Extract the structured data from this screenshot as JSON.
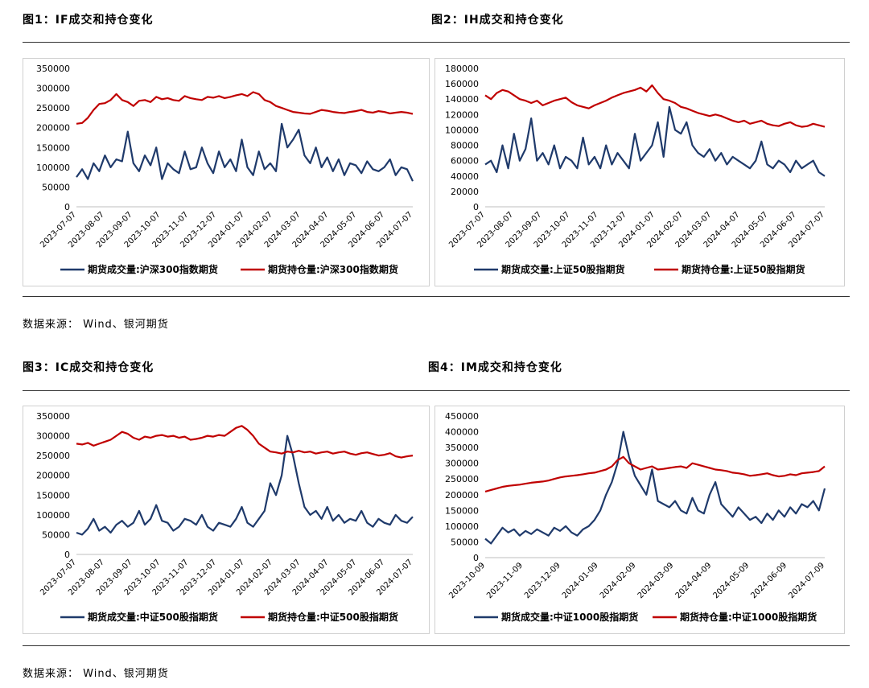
{
  "colors": {
    "volume": "#1f3a6b",
    "open_interest": "#c00000"
  },
  "top": {
    "left_title": "图1：IF成交和持仓变化",
    "right_title": "图2：IH成交和持仓变化",
    "source": "数据来源： Wind、银河期货"
  },
  "bottom": {
    "left_title": "图3：IC成交和持仓变化",
    "right_title": "图4：IM成交和持仓变化",
    "source": "数据来源： Wind、银河期货"
  },
  "chart_data": [
    {
      "id": "if",
      "type": "line",
      "x_labels": [
        "2023-07-07",
        "2023-08-07",
        "2023-09-07",
        "2023-10-07",
        "2023-11-07",
        "2023-12-07",
        "2024-01-07",
        "2024-02-07",
        "2024-03-07",
        "2024-04-07",
        "2024-05-07",
        "2024-06-07",
        "2024-07-07"
      ],
      "y_ticks": [
        "0",
        "50000",
        "100000",
        "150000",
        "200000",
        "250000",
        "300000",
        "350000"
      ],
      "ylim": [
        0,
        350000
      ],
      "series": [
        {
          "name": "期货成交量:沪深300指数期货",
          "color_key": "volume",
          "values": [
            75000,
            95000,
            70000,
            110000,
            90000,
            130000,
            100000,
            120000,
            115000,
            190000,
            110000,
            90000,
            130000,
            105000,
            150000,
            70000,
            110000,
            95000,
            85000,
            140000,
            95000,
            100000,
            150000,
            110000,
            85000,
            140000,
            100000,
            120000,
            90000,
            170000,
            100000,
            80000,
            140000,
            95000,
            110000,
            90000,
            210000,
            150000,
            170000,
            195000,
            130000,
            110000,
            150000,
            100000,
            125000,
            90000,
            120000,
            80000,
            110000,
            105000,
            85000,
            115000,
            95000,
            90000,
            100000,
            120000,
            80000,
            100000,
            95000,
            65000
          ]
        },
        {
          "name": "期货持仓量:沪深300指数期货",
          "color_key": "open_interest",
          "values": [
            210000,
            212000,
            225000,
            245000,
            260000,
            262000,
            270000,
            285000,
            270000,
            265000,
            255000,
            268000,
            270000,
            265000,
            278000,
            272000,
            275000,
            270000,
            268000,
            280000,
            275000,
            272000,
            270000,
            278000,
            276000,
            280000,
            275000,
            278000,
            282000,
            285000,
            280000,
            290000,
            285000,
            270000,
            265000,
            255000,
            250000,
            245000,
            240000,
            238000,
            236000,
            235000,
            240000,
            245000,
            243000,
            240000,
            238000,
            237000,
            240000,
            242000,
            245000,
            240000,
            238000,
            242000,
            240000,
            236000,
            238000,
            240000,
            238000,
            235000
          ]
        }
      ]
    },
    {
      "id": "ih",
      "type": "line",
      "x_labels": [
        "2023-07-07",
        "2023-08-07",
        "2023-09-07",
        "2023-10-07",
        "2023-11-07",
        "2023-12-07",
        "2024-01-07",
        "2024-02-07",
        "2024-03-07",
        "2024-04-07",
        "2024-05-07",
        "2024-06-07",
        "2024-07-07"
      ],
      "y_ticks": [
        "0",
        "20000",
        "40000",
        "60000",
        "80000",
        "100000",
        "120000",
        "140000",
        "160000",
        "180000"
      ],
      "ylim": [
        0,
        180000
      ],
      "series": [
        {
          "name": "期货成交量:上证50股指期货",
          "color_key": "volume",
          "values": [
            55000,
            60000,
            45000,
            80000,
            50000,
            95000,
            60000,
            75000,
            115000,
            60000,
            70000,
            55000,
            80000,
            50000,
            65000,
            60000,
            50000,
            90000,
            55000,
            65000,
            50000,
            80000,
            55000,
            70000,
            60000,
            50000,
            95000,
            60000,
            70000,
            80000,
            110000,
            65000,
            130000,
            100000,
            95000,
            110000,
            80000,
            70000,
            65000,
            75000,
            60000,
            70000,
            55000,
            65000,
            60000,
            55000,
            50000,
            60000,
            85000,
            55000,
            50000,
            60000,
            55000,
            45000,
            60000,
            50000,
            55000,
            60000,
            45000,
            40000
          ]
        },
        {
          "name": "期货持仓量:上证50股指期货",
          "color_key": "open_interest",
          "values": [
            145000,
            140000,
            148000,
            152000,
            150000,
            145000,
            140000,
            138000,
            135000,
            138000,
            132000,
            135000,
            138000,
            140000,
            142000,
            136000,
            132000,
            130000,
            128000,
            132000,
            135000,
            138000,
            142000,
            145000,
            148000,
            150000,
            152000,
            155000,
            150000,
            158000,
            148000,
            140000,
            138000,
            135000,
            130000,
            128000,
            125000,
            122000,
            120000,
            118000,
            120000,
            118000,
            115000,
            112000,
            110000,
            112000,
            108000,
            110000,
            112000,
            108000,
            106000,
            105000,
            108000,
            110000,
            106000,
            104000,
            105000,
            108000,
            106000,
            104000
          ]
        }
      ]
    },
    {
      "id": "ic",
      "type": "line",
      "x_labels": [
        "2023-07-07",
        "2023-08-07",
        "2023-09-07",
        "2023-10-07",
        "2023-11-07",
        "2023-12-07",
        "2024-01-07",
        "2024-02-07",
        "2024-03-07",
        "2024-04-07",
        "2024-05-07",
        "2024-06-07",
        "2024-07-07"
      ],
      "y_ticks": [
        "0",
        "50000",
        "100000",
        "150000",
        "200000",
        "250000",
        "300000",
        "350000"
      ],
      "ylim": [
        0,
        350000
      ],
      "series": [
        {
          "name": "期货成交量:中证500股指期货",
          "color_key": "volume",
          "values": [
            55000,
            50000,
            65000,
            90000,
            60000,
            70000,
            55000,
            75000,
            85000,
            70000,
            80000,
            110000,
            75000,
            90000,
            125000,
            85000,
            80000,
            60000,
            70000,
            90000,
            85000,
            75000,
            100000,
            70000,
            60000,
            80000,
            75000,
            70000,
            90000,
            120000,
            80000,
            70000,
            90000,
            110000,
            180000,
            150000,
            200000,
            300000,
            250000,
            180000,
            120000,
            100000,
            110000,
            90000,
            120000,
            85000,
            100000,
            80000,
            90000,
            85000,
            110000,
            80000,
            70000,
            90000,
            80000,
            75000,
            100000,
            85000,
            80000,
            95000
          ]
        },
        {
          "name": "期货持仓量:中证500股指期货",
          "color_key": "open_interest",
          "values": [
            280000,
            278000,
            282000,
            275000,
            280000,
            285000,
            290000,
            300000,
            310000,
            305000,
            295000,
            290000,
            298000,
            295000,
            300000,
            302000,
            298000,
            300000,
            295000,
            298000,
            290000,
            292000,
            295000,
            300000,
            298000,
            302000,
            300000,
            310000,
            320000,
            325000,
            315000,
            300000,
            280000,
            270000,
            260000,
            258000,
            255000,
            260000,
            258000,
            262000,
            258000,
            260000,
            255000,
            258000,
            260000,
            255000,
            258000,
            260000,
            255000,
            252000,
            256000,
            258000,
            254000,
            250000,
            252000,
            256000,
            248000,
            245000,
            248000,
            250000
          ]
        }
      ]
    },
    {
      "id": "im",
      "type": "line",
      "x_labels": [
        "2023-10-09",
        "2023-11-09",
        "2023-12-09",
        "2024-01-09",
        "2024-02-09",
        "2024-03-09",
        "2024-04-09",
        "2024-05-09",
        "2024-06-09",
        "2024-07-09"
      ],
      "y_ticks": [
        "0",
        "50000",
        "100000",
        "150000",
        "200000",
        "250000",
        "300000",
        "350000",
        "400000",
        "450000"
      ],
      "ylim": [
        0,
        450000
      ],
      "series": [
        {
          "name": "期货成交量:中证1000股指期货",
          "color_key": "volume",
          "values": [
            60000,
            45000,
            70000,
            95000,
            80000,
            90000,
            70000,
            85000,
            75000,
            90000,
            80000,
            70000,
            95000,
            85000,
            100000,
            80000,
            70000,
            90000,
            100000,
            120000,
            150000,
            200000,
            240000,
            300000,
            400000,
            320000,
            260000,
            230000,
            200000,
            280000,
            180000,
            170000,
            160000,
            180000,
            150000,
            140000,
            190000,
            150000,
            140000,
            200000,
            240000,
            170000,
            150000,
            130000,
            160000,
            140000,
            120000,
            130000,
            110000,
            140000,
            120000,
            150000,
            130000,
            160000,
            140000,
            170000,
            160000,
            180000,
            150000,
            220000
          ]
        },
        {
          "name": "期货持仓量:中证1000股指期货",
          "color_key": "open_interest",
          "values": [
            210000,
            215000,
            220000,
            225000,
            228000,
            230000,
            232000,
            235000,
            238000,
            240000,
            242000,
            245000,
            250000,
            255000,
            258000,
            260000,
            262000,
            265000,
            268000,
            270000,
            275000,
            280000,
            290000,
            310000,
            320000,
            300000,
            290000,
            280000,
            285000,
            290000,
            280000,
            282000,
            285000,
            288000,
            290000,
            285000,
            300000,
            295000,
            290000,
            285000,
            280000,
            278000,
            275000,
            270000,
            268000,
            265000,
            260000,
            262000,
            265000,
            268000,
            262000,
            258000,
            260000,
            265000,
            262000,
            268000,
            270000,
            272000,
            275000,
            290000
          ]
        }
      ]
    }
  ]
}
